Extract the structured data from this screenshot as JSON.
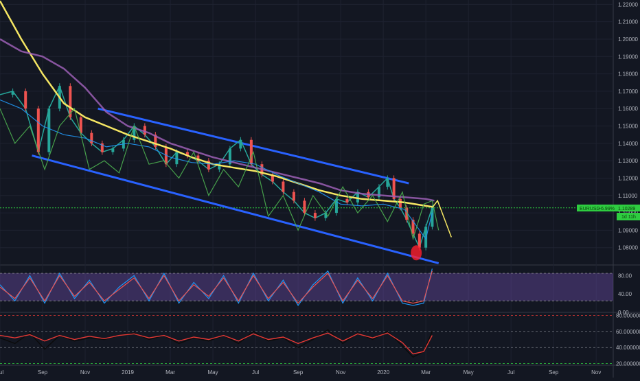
{
  "chart_data": [
    {
      "type": "line",
      "symbol": "EURUSD",
      "title": "",
      "xlabel": "",
      "ylabel": "",
      "price_tag": {
        "label": "EURUSD",
        "change": "−6.99%",
        "price": "1.10289",
        "countdown": "1d 11h"
      },
      "ylim": [
        1.07,
        1.2225
      ],
      "y_ticks": [
        "1.22000",
        "1.21000",
        "1.20000",
        "1.19000",
        "1.18000",
        "1.17000",
        "1.16000",
        "1.15000",
        "1.14000",
        "1.13000",
        "1.12000",
        "1.11000",
        "1.10000",
        "1.09000",
        "1.08000"
      ],
      "x_ticks": [
        "Jul",
        "Sep",
        "Nov",
        "2019",
        "Mar",
        "May",
        "Jul",
        "Sep",
        "Nov",
        "2020",
        "Mar",
        "May",
        "Jul",
        "Sep",
        "Nov"
      ],
      "x_tick_months": [
        0,
        2,
        4,
        6,
        8,
        10,
        12,
        14,
        16,
        18,
        20,
        22,
        24,
        26,
        28
      ],
      "xlim_months": [
        0,
        28.8
      ],
      "grid": true,
      "legend": "none",
      "series": [
        {
          "color": "#26a69a",
          "style": "price",
          "x": [
            0,
            0.6,
            1.2,
            1.8,
            2.3,
            2.8,
            3.3,
            3.8,
            4.3,
            4.8,
            5.3,
            5.8,
            6.3,
            6.8,
            7.3,
            7.8,
            8.3,
            8.8,
            9.3,
            9.8,
            10.3,
            10.8,
            11.3,
            11.8,
            12.3,
            12.8,
            13.3,
            13.8,
            14.3,
            14.8,
            15.3,
            15.8,
            16.3,
            16.8,
            17.3,
            17.8,
            18.2,
            18.5,
            18.8,
            19.1,
            19.4,
            19.7,
            20.0,
            20.3
          ],
          "y": [
            1.168,
            1.17,
            1.16,
            1.135,
            1.16,
            1.173,
            1.155,
            1.146,
            1.14,
            1.135,
            1.137,
            1.142,
            1.15,
            1.145,
            1.138,
            1.128,
            1.135,
            1.133,
            1.13,
            1.125,
            1.128,
            1.137,
            1.142,
            1.128,
            1.122,
            1.118,
            1.112,
            1.107,
            1.1,
            1.097,
            1.1,
            1.108,
            1.106,
            1.112,
            1.109,
            1.115,
            1.12,
            1.108,
            1.103,
            1.096,
            1.088,
            1.08,
            1.092,
            1.103
          ]
        },
        {
          "color": "#f5e663",
          "style": "ma-200",
          "x": [
            0,
            1,
            2,
            3,
            4,
            5,
            6,
            7,
            8,
            9,
            10,
            11,
            12,
            13,
            14,
            15,
            16,
            17,
            18,
            19,
            20,
            20.3
          ],
          "y": [
            1.222,
            1.2,
            1.18,
            1.163,
            1.155,
            1.15,
            1.145,
            1.141,
            1.137,
            1.132,
            1.128,
            1.126,
            1.124,
            1.121,
            1.117,
            1.113,
            1.11,
            1.108,
            1.107,
            1.106,
            1.104,
            1.1035
          ]
        },
        {
          "color": "#9c5fb5",
          "style": "ma-long",
          "x": [
            0,
            1,
            2,
            3,
            4,
            5,
            6,
            7,
            8,
            9,
            10,
            11,
            12,
            13,
            14,
            15,
            16,
            17,
            18,
            19,
            20,
            20.4
          ],
          "y": [
            1.2,
            1.193,
            1.19,
            1.183,
            1.172,
            1.158,
            1.15,
            1.146,
            1.14,
            1.136,
            1.132,
            1.129,
            1.126,
            1.123,
            1.12,
            1.117,
            1.113,
            1.111,
            1.11,
            1.109,
            1.108,
            1.107
          ]
        },
        {
          "color": "#2196f3",
          "style": "signal",
          "x": [
            0,
            1,
            2,
            3,
            4,
            5,
            6,
            7,
            8,
            9,
            10,
            11,
            12,
            13,
            14,
            15,
            16,
            17,
            18,
            19,
            20,
            20.3
          ],
          "y": [
            1.165,
            1.16,
            1.15,
            1.145,
            1.143,
            1.138,
            1.14,
            1.138,
            1.132,
            1.129,
            1.128,
            1.13,
            1.128,
            1.122,
            1.117,
            1.112,
            1.105,
            1.104,
            1.105,
            1.102,
            1.085,
            1.1
          ]
        },
        {
          "color": "#4caf50",
          "style": "signal",
          "x": [
            0,
            0.7,
            1.4,
            2.1,
            2.8,
            3.5,
            4.2,
            4.9,
            5.6,
            6.3,
            7,
            7.7,
            8.4,
            9.1,
            9.8,
            10.5,
            11.2,
            11.9,
            12.6,
            13.3,
            14,
            14.7,
            15.4,
            16.1,
            16.8,
            17.5,
            18.2,
            18.9,
            19.4,
            19.9,
            20.3,
            20.6
          ],
          "y": [
            1.16,
            1.14,
            1.15,
            1.125,
            1.15,
            1.16,
            1.125,
            1.13,
            1.123,
            1.15,
            1.128,
            1.13,
            1.12,
            1.135,
            1.11,
            1.125,
            1.115,
            1.135,
            1.098,
            1.11,
            1.09,
            1.11,
            1.098,
            1.115,
            1.1,
            1.11,
            1.095,
            1.112,
            1.085,
            1.105,
            1.107,
            1.09
          ]
        },
        {
          "color": "#f5e663",
          "style": "projection",
          "x": [
            20.3,
            20.55,
            21.2
          ],
          "y": [
            1.103,
            1.107,
            1.086
          ]
        }
      ],
      "annotations": [
        {
          "kind": "trendline",
          "color": "#2962ff",
          "x": [
            4.6,
            19.2
          ],
          "y": [
            1.16,
            1.117
          ]
        },
        {
          "kind": "trendline",
          "color": "#2962ff",
          "x": [
            1.5,
            20.6
          ],
          "y": [
            1.133,
            1.071
          ]
        },
        {
          "kind": "marker",
          "color": "#ff1e2d",
          "x": 19.55,
          "y": 1.077
        }
      ]
    },
    {
      "type": "line",
      "panel": "rsi",
      "ylim": [
        0,
        100
      ],
      "y_ticks": [
        "80.00",
        "40.00",
        "0.00"
      ],
      "band": [
        25,
        85
      ],
      "series": [
        {
          "color": "#2196f3",
          "x": [
            0,
            0.7,
            1.4,
            2.1,
            2.8,
            3.5,
            4.2,
            4.9,
            5.6,
            6.3,
            7,
            7.7,
            8.4,
            9.1,
            9.8,
            10.5,
            11.2,
            11.9,
            12.6,
            13.3,
            14,
            14.7,
            15.4,
            16.1,
            16.8,
            17.5,
            18.2,
            18.9,
            19.4,
            19.9,
            20.3
          ],
          "y": [
            60,
            25,
            80,
            20,
            85,
            30,
            70,
            20,
            55,
            80,
            25,
            85,
            20,
            65,
            30,
            80,
            20,
            85,
            25,
            70,
            15,
            60,
            90,
            20,
            75,
            25,
            85,
            20,
            15,
            20,
            95
          ]
        },
        {
          "color": "#ef5350",
          "x": [
            0,
            0.7,
            1.4,
            2.1,
            2.8,
            3.5,
            4.2,
            4.9,
            5.6,
            6.3,
            7,
            7.7,
            8.4,
            9.1,
            9.8,
            10.5,
            11.2,
            11.9,
            12.6,
            13.3,
            14,
            14.7,
            15.4,
            16.1,
            16.8,
            17.5,
            18.2,
            18.9,
            19.4,
            19.9,
            20.3
          ],
          "y": [
            55,
            30,
            75,
            25,
            80,
            35,
            65,
            25,
            50,
            75,
            30,
            80,
            25,
            60,
            35,
            75,
            25,
            80,
            30,
            65,
            20,
            55,
            85,
            25,
            70,
            30,
            80,
            25,
            20,
            25,
            90
          ]
        }
      ]
    },
    {
      "type": "line",
      "panel": "oscillator",
      "ylim": [
        18,
        82
      ],
      "y_ticks": [
        "80.000000",
        "60.000000",
        "40.000000",
        "20.000000"
      ],
      "series": [
        {
          "color": "#0b0b0b",
          "x": [
            0,
            0.7,
            1.4,
            2.1,
            2.8,
            3.5,
            4.2,
            4.9,
            5.6,
            6.3,
            7,
            7.7,
            8.4,
            9.1,
            9.8,
            10.5,
            11.2,
            11.9,
            12.6,
            13.3,
            14,
            14.7,
            15.4,
            16.1,
            16.8,
            17.5,
            18.2,
            18.9,
            19.4,
            19.9,
            20.3
          ],
          "y": [
            52,
            45,
            58,
            38,
            55,
            48,
            52,
            50,
            55,
            58,
            50,
            55,
            45,
            52,
            48,
            55,
            45,
            60,
            48,
            52,
            40,
            50,
            62,
            45,
            58,
            50,
            60,
            42,
            28,
            35,
            60
          ]
        },
        {
          "color": "#e53935",
          "x": [
            0,
            0.7,
            1.4,
            2.1,
            2.8,
            3.5,
            4.2,
            4.9,
            5.6,
            6.3,
            7,
            7.7,
            8.4,
            9.1,
            9.8,
            10.5,
            11.2,
            11.9,
            12.6,
            13.3,
            14,
            14.7,
            15.4,
            16.1,
            16.8,
            17.5,
            18.2,
            18.9,
            19.4,
            19.9,
            20.3
          ],
          "y": [
            55,
            52,
            56,
            48,
            55,
            50,
            54,
            51,
            55,
            57,
            52,
            55,
            48,
            53,
            50,
            55,
            48,
            57,
            50,
            53,
            45,
            52,
            58,
            48,
            57,
            52,
            58,
            46,
            32,
            35,
            55
          ]
        }
      ]
    }
  ]
}
